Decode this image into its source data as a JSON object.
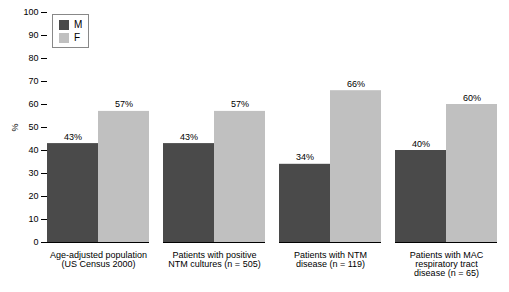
{
  "chart_data": {
    "type": "bar",
    "categories": [
      "Age-adjusted population\n(US Census 2000)",
      "Patients with positive\nNTM cultures (n = 505)",
      "Patients with NTM\ndisease (n = 119)",
      "Patients with MAC\nrespiratory tract\ndisease (n = 65)"
    ],
    "series": [
      {
        "name": "M",
        "color": "#4a4a4a",
        "values": [
          43,
          43,
          34,
          40
        ],
        "value_labels": [
          "43%",
          "43%",
          "34%",
          "40%"
        ]
      },
      {
        "name": "F",
        "color": "#c0c0c0",
        "values": [
          57,
          57,
          66,
          60
        ],
        "value_labels": [
          "57%",
          "57%",
          "66%",
          "60%"
        ]
      }
    ],
    "ylabel": "%",
    "ylim": [
      0,
      100
    ],
    "yticks": [
      0,
      10,
      20,
      30,
      40,
      50,
      60,
      70,
      80,
      90,
      100
    ],
    "data_labels": true,
    "legend": "upper left",
    "grid": false
  }
}
